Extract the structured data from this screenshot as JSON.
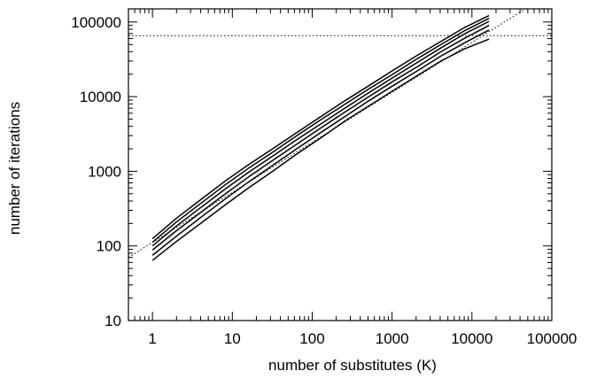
{
  "chart_data": {
    "type": "line",
    "title": "",
    "xlabel": "number of substitutes (K)",
    "ylabel": "number of iterations",
    "x_scale": "log",
    "y_scale": "log",
    "xlim": [
      0.5,
      100000
    ],
    "ylim": [
      10,
      150000
    ],
    "x_ticks": [
      1,
      10,
      100,
      1000,
      10000,
      100000
    ],
    "x_tick_labels": [
      "1",
      "10",
      "100",
      "1000",
      "10000",
      "100000"
    ],
    "y_ticks": [
      10,
      100,
      1000,
      10000,
      100000
    ],
    "y_tick_labels": [
      "10",
      "100",
      "1000",
      "10000",
      "100000"
    ],
    "grid": false,
    "series": [
      {
        "style": "solid",
        "x": [
          1,
          2,
          4,
          8,
          16,
          32,
          64,
          128,
          256,
          512,
          1024,
          2048,
          4096,
          8192,
          16384
        ],
        "y": [
          64,
          115,
          200,
          350,
          600,
          1000,
          1700,
          2800,
          4700,
          7500,
          12000,
          19000,
          30000,
          44000,
          59000
        ]
      },
      {
        "style": "solid",
        "x": [
          1,
          2,
          4,
          8,
          16,
          32,
          64,
          128,
          256,
          512,
          1024,
          2048,
          4096,
          8192,
          16384
        ],
        "y": [
          75,
          135,
          240,
          420,
          720,
          1200,
          2000,
          3300,
          5400,
          8800,
          14000,
          22000,
          35000,
          53000,
          78000
        ]
      },
      {
        "style": "solid",
        "x": [
          1,
          2,
          4,
          8,
          16,
          32,
          64,
          128,
          256,
          512,
          1024,
          2048,
          4096,
          8192,
          16384
        ],
        "y": [
          88,
          160,
          280,
          490,
          840,
          1400,
          2300,
          3800,
          6200,
          10000,
          16000,
          25000,
          40000,
          61000,
          90000
        ]
      },
      {
        "style": "solid",
        "x": [
          1,
          2,
          4,
          8,
          16,
          32,
          64,
          128,
          256,
          512,
          1024,
          2048,
          4096,
          8192,
          16384
        ],
        "y": [
          100,
          185,
          325,
          570,
          970,
          1600,
          2650,
          4300,
          7000,
          11300,
          18000,
          28500,
          45000,
          70000,
          102000
        ]
      },
      {
        "style": "solid",
        "x": [
          1,
          2,
          4,
          8,
          16,
          32,
          64,
          128,
          256,
          512,
          1024,
          2048,
          4096,
          8192,
          16384
        ],
        "y": [
          112,
          210,
          370,
          650,
          1100,
          1800,
          3000,
          4900,
          7900,
          12700,
          20000,
          32000,
          50000,
          77000,
          112000
        ]
      },
      {
        "style": "solid",
        "x": [
          1,
          2,
          4,
          8,
          16,
          32,
          64,
          128,
          256,
          512,
          1024,
          2048,
          4096,
          8192,
          16384
        ],
        "y": [
          125,
          235,
          415,
          730,
          1230,
          2000,
          3300,
          5400,
          8800,
          14000,
          22500,
          35500,
          55000,
          85000,
          122000
        ]
      },
      {
        "style": "dotted",
        "x": [
          0.5,
          100000
        ],
        "y": [
          70,
          250000
        ]
      },
      {
        "style": "dotted",
        "x": [
          0.5,
          100000
        ],
        "y": [
          65536,
          65536
        ]
      }
    ]
  }
}
